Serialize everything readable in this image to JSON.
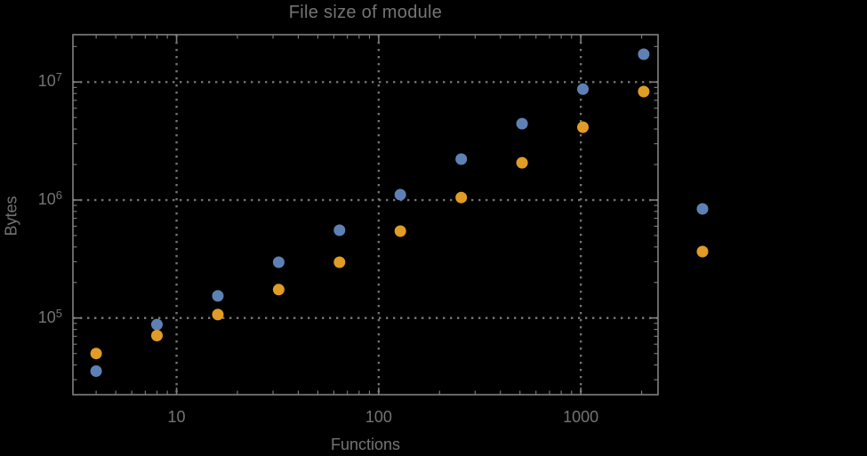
{
  "chart_data": {
    "type": "scatter",
    "title": "File size of module",
    "xlabel": "Functions",
    "ylabel": "Bytes",
    "x_scale": "log",
    "y_scale": "log",
    "x_range": [
      3.07,
      2410
    ],
    "y_range": [
      22400,
      25200000
    ],
    "x_major_ticks": [
      10,
      100,
      1000
    ],
    "y_major_tick_exponents": [
      5,
      6,
      7
    ],
    "grid": "dotted gridlines at decade majors, ticks inward on all four frame edges",
    "x": [
      4,
      8,
      16,
      32,
      64,
      128,
      256,
      512,
      1024,
      2048
    ],
    "series": [
      {
        "name": "series-1-blue",
        "color": "#5E81B5",
        "values": [
          35500,
          88000,
          154000,
          297000,
          555000,
          1110000,
          2220000,
          4440000,
          8700000,
          17200000
        ]
      },
      {
        "name": "series-2-orange",
        "color": "#E09C24",
        "values": [
          50000,
          71000,
          107000,
          174000,
          297000,
          545000,
          1050000,
          2070000,
          4140000,
          8300000
        ]
      }
    ],
    "legend": {
      "position": "outside-right",
      "labels_visible": false,
      "markers": [
        {
          "series": "series-1-blue",
          "color": "#5E81B5"
        },
        {
          "series": "series-2-orange",
          "color": "#E09C24"
        }
      ]
    }
  },
  "colors": {
    "background": "#000000",
    "frame": "#7f7f7f",
    "grid": "#737373",
    "text": "#747474"
  }
}
